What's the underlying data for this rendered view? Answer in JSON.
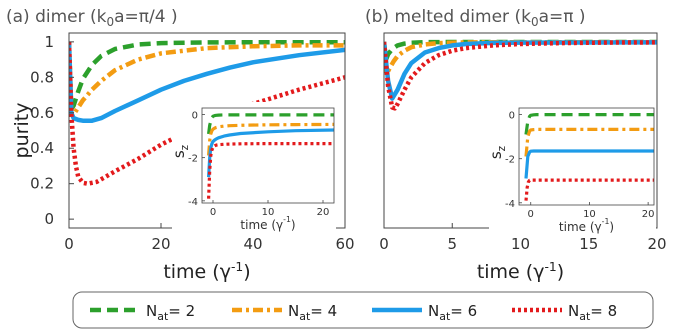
{
  "chart_data": [
    {
      "type": "line",
      "title": "(a) dimer (k0a=π/4 )",
      "xlabel": "time (γ-1)",
      "ylabel": "purity",
      "xlim": [
        0,
        60
      ],
      "ylim": [
        -0.05,
        1.05
      ],
      "xticks": [
        0,
        20,
        40,
        60
      ],
      "xtick_labels": [
        "0",
        "20",
        "40",
        "60"
      ],
      "yticks": [
        0,
        0.2,
        0.4,
        0.6,
        0.8,
        1
      ],
      "ytick_labels": [
        "0",
        "0.2",
        "0.4",
        "0.6",
        "0.8",
        "1"
      ],
      "grid": false,
      "series": [
        {
          "name": "Nat= 2",
          "x": [
            0,
            0.5,
            1,
            2,
            3,
            5,
            7,
            10,
            15,
            20,
            30,
            40,
            50,
            60
          ],
          "y": [
            1.0,
            0.62,
            0.64,
            0.72,
            0.79,
            0.87,
            0.92,
            0.96,
            0.985,
            0.993,
            0.997,
            0.998,
            0.998,
            0.998
          ]
        },
        {
          "name": "Nat= 4",
          "x": [
            0,
            0.5,
            1,
            2,
            3,
            5,
            7,
            10,
            15,
            20,
            25,
            30,
            40,
            50,
            60
          ],
          "y": [
            1.0,
            0.6,
            0.59,
            0.63,
            0.67,
            0.73,
            0.78,
            0.84,
            0.9,
            0.935,
            0.95,
            0.965,
            0.975,
            0.98,
            0.98
          ]
        },
        {
          "name": "Nat= 6",
          "x": [
            0,
            0.5,
            1,
            2,
            3,
            5,
            7,
            10,
            15,
            20,
            25,
            30,
            35,
            40,
            50,
            60
          ],
          "y": [
            1.0,
            0.6,
            0.57,
            0.56,
            0.555,
            0.555,
            0.57,
            0.61,
            0.67,
            0.73,
            0.78,
            0.82,
            0.855,
            0.885,
            0.925,
            0.955
          ]
        },
        {
          "name": "Nat= 8",
          "x": [
            0,
            0.5,
            1,
            1.5,
            2,
            3,
            4,
            6,
            8,
            10,
            15,
            20,
            30,
            40,
            50,
            60
          ],
          "y": [
            1.0,
            0.6,
            0.4,
            0.3,
            0.24,
            0.205,
            0.2,
            0.21,
            0.24,
            0.27,
            0.34,
            0.42,
            0.55,
            0.65,
            0.73,
            0.8
          ]
        }
      ],
      "inset": {
        "xlabel": "time (γ-1)",
        "ylabel": "sz",
        "xlim": [
          -2,
          22
        ],
        "ylim": [
          -4.1,
          0.3
        ],
        "xticks": [
          0,
          10,
          20
        ],
        "xtick_labels": [
          "0",
          "10",
          "20"
        ],
        "yticks": [
          0,
          -2,
          -4
        ],
        "ytick_labels": [
          "0",
          "-2",
          "-4"
        ],
        "series": [
          {
            "name": "Nat= 2",
            "x": [
              -0.8,
              -0.6,
              -0.4,
              -0.2,
              0,
              0.3,
              0.6,
              1,
              2,
              3,
              5,
              10,
              15,
              22
            ],
            "y": [
              -0.9,
              -0.5,
              -0.3,
              -0.15,
              -0.08,
              -0.05,
              -0.04,
              -0.03,
              -0.02,
              -0.02,
              -0.02,
              -0.02,
              -0.02,
              -0.02
            ]
          },
          {
            "name": "Nat= 4",
            "x": [
              -0.8,
              -0.6,
              -0.4,
              -0.2,
              0,
              0.3,
              0.6,
              1,
              2,
              3,
              5,
              10,
              15,
              22
            ],
            "y": [
              -1.9,
              -1.2,
              -0.9,
              -0.75,
              -0.68,
              -0.63,
              -0.6,
              -0.57,
              -0.54,
              -0.52,
              -0.5,
              -0.48,
              -0.47,
              -0.46
            ]
          },
          {
            "name": "Nat= 6",
            "x": [
              -0.8,
              -0.6,
              -0.4,
              -0.2,
              0,
              0.3,
              0.6,
              1,
              2,
              3,
              5,
              10,
              15,
              22
            ],
            "y": [
              -2.9,
              -2.0,
              -1.55,
              -1.35,
              -1.25,
              -1.18,
              -1.13,
              -1.08,
              -1.0,
              -0.95,
              -0.88,
              -0.8,
              -0.75,
              -0.72
            ]
          },
          {
            "name": "Nat= 8",
            "x": [
              -0.8,
              -0.6,
              -0.4,
              -0.2,
              0,
              0.3,
              0.6,
              1,
              2,
              3,
              5,
              10,
              15,
              22
            ],
            "y": [
              -3.9,
              -2.6,
              -1.9,
              -1.65,
              -1.52,
              -1.45,
              -1.42,
              -1.4,
              -1.38,
              -1.37,
              -1.36,
              -1.35,
              -1.35,
              -1.35
            ]
          }
        ]
      }
    },
    {
      "type": "line",
      "title": "(b) melted dimer (k0a=π )",
      "xlabel": "time (γ-1)",
      "ylabel": "",
      "xlim": [
        0,
        20
      ],
      "ylim": [
        -0.05,
        1.05
      ],
      "xticks": [
        0,
        5,
        10,
        15,
        20
      ],
      "xtick_labels": [
        "0",
        "5",
        "10",
        "15",
        "20"
      ],
      "grid": false,
      "series": [
        {
          "name": "Nat= 2",
          "x": [
            0,
            0.15,
            0.3,
            0.6,
            1,
            1.5,
            2,
            3,
            5,
            20
          ],
          "y": [
            1.0,
            0.9,
            0.93,
            0.96,
            0.98,
            0.99,
            0.995,
            0.998,
            0.999,
            0.999
          ]
        },
        {
          "name": "Nat= 4",
          "x": [
            0,
            0.2,
            0.4,
            0.7,
            1,
            1.5,
            2,
            3,
            4,
            6,
            8,
            20
          ],
          "y": [
            1.0,
            0.82,
            0.85,
            0.89,
            0.92,
            0.95,
            0.97,
            0.985,
            0.993,
            0.997,
            0.998,
            0.998
          ]
        },
        {
          "name": "Nat= 6",
          "x": [
            0,
            0.3,
            0.6,
            1,
            1.5,
            2,
            3,
            4,
            5,
            6,
            8,
            10,
            20
          ],
          "y": [
            1.0,
            0.78,
            0.68,
            0.73,
            0.82,
            0.88,
            0.94,
            0.965,
            0.98,
            0.988,
            0.994,
            0.996,
            0.997
          ]
        },
        {
          "name": "Nat= 8",
          "x": [
            0,
            0.3,
            0.6,
            0.8,
            1,
            1.5,
            2,
            3,
            4,
            5,
            6,
            8,
            10,
            13,
            16,
            20
          ],
          "y": [
            1.0,
            0.75,
            0.63,
            0.625,
            0.65,
            0.73,
            0.8,
            0.88,
            0.925,
            0.95,
            0.965,
            0.98,
            0.988,
            0.993,
            0.996,
            0.997
          ]
        }
      ],
      "inset": {
        "xlabel": "time (γ-1)",
        "ylabel": "sz",
        "xlim": [
          -2,
          21
        ],
        "ylim": [
          -4.1,
          0.3
        ],
        "xticks": [
          0,
          10,
          20
        ],
        "xtick_labels": [
          "0",
          "10",
          "20"
        ],
        "yticks": [
          0,
          -2,
          -4
        ],
        "ytick_labels": [
          "0",
          "-2",
          "-4"
        ],
        "series": [
          {
            "name": "Nat= 2",
            "x": [
              -0.8,
              -0.5,
              -0.2,
              0,
              0.5,
              1,
              2,
              21
            ],
            "y": [
              -0.9,
              -0.3,
              -0.08,
              -0.03,
              -0.01,
              0,
              0,
              0
            ]
          },
          {
            "name": "Nat= 4",
            "x": [
              -0.8,
              -0.5,
              -0.2,
              0,
              0.5,
              1,
              2,
              21
            ],
            "y": [
              -1.9,
              -1.0,
              -0.75,
              -0.7,
              -0.68,
              -0.67,
              -0.67,
              -0.67
            ]
          },
          {
            "name": "Nat= 6",
            "x": [
              -0.8,
              -0.5,
              -0.2,
              0,
              0.5,
              1,
              2,
              21
            ],
            "y": [
              -2.9,
              -1.9,
              -1.7,
              -1.66,
              -1.65,
              -1.65,
              -1.65,
              -1.65
            ]
          },
          {
            "name": "Nat= 8",
            "x": [
              -0.8,
              -0.6,
              -0.4,
              -0.2,
              0,
              21
            ],
            "y": [
              -3.9,
              -3.3,
              -3.05,
              -2.98,
              -2.97,
              -2.97
            ]
          }
        ]
      }
    }
  ],
  "legend": {
    "placement": "bottom",
    "items": [
      {
        "label": "N",
        "sub": "at",
        "rest": "= 2",
        "color": "#2ca02c",
        "dash": "dash"
      },
      {
        "label": "N",
        "sub": "at",
        "rest": "= 4",
        "color": "#f39c12",
        "dash": "dashdot"
      },
      {
        "label": "N",
        "sub": "at",
        "rest": "= 6",
        "color": "#1e9be8",
        "dash": "solid"
      },
      {
        "label": "N",
        "sub": "at",
        "rest": "= 8",
        "color": "#e31a1c",
        "dash": "dot"
      }
    ]
  },
  "styles": {
    "colors": [
      "#2ca02c",
      "#f39c12",
      "#1e9be8",
      "#e31a1c"
    ],
    "dashes": [
      "dash",
      "dashdot",
      "solid",
      "dot"
    ]
  }
}
